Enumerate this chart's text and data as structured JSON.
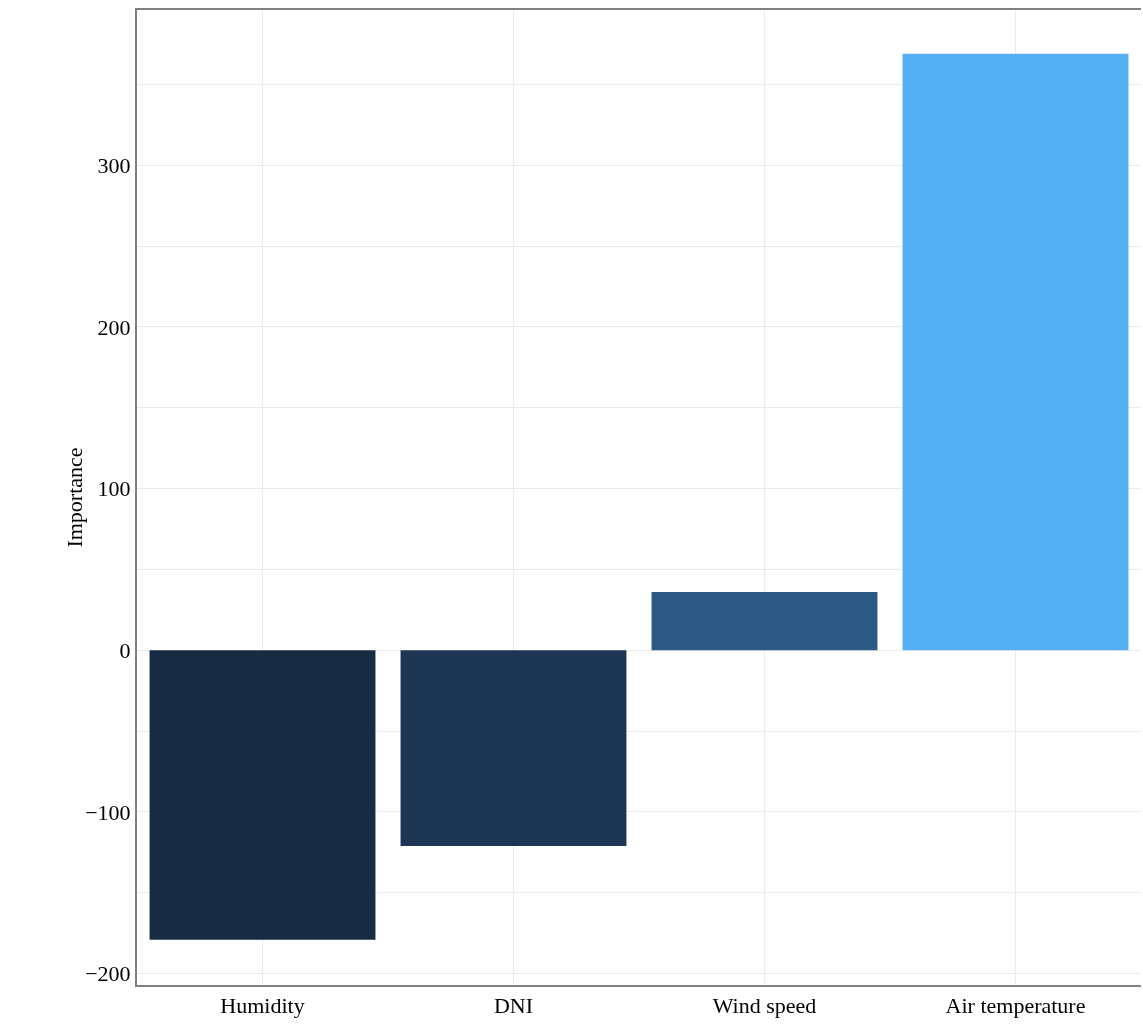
{
  "chart_data": {
    "type": "bar",
    "ylabel": "Importance",
    "categories": [
      "Humidity",
      "DNI",
      "Wind speed",
      "Air temperature"
    ],
    "values": [
      -179,
      -121,
      36,
      369
    ],
    "colors": [
      "#172b43",
      "#1c3654",
      "#2d5a84",
      "#56b0f5"
    ],
    "ylim": [
      -207,
      396
    ],
    "yticks": [
      {
        "value": -200,
        "label": "−200"
      },
      {
        "value": -150,
        "label": null
      },
      {
        "value": -100,
        "label": "−100"
      },
      {
        "value": -50,
        "label": null
      },
      0,
      {
        "value": 50,
        "label": null
      },
      100,
      {
        "value": 150,
        "label": null
      },
      200,
      {
        "value": 250,
        "label": null
      },
      300,
      {
        "value": 350,
        "label": null
      }
    ],
    "grid": true
  }
}
